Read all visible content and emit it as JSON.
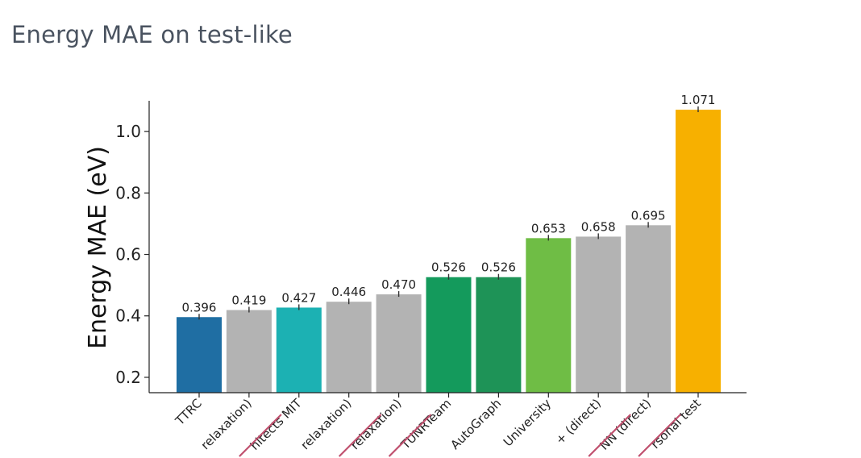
{
  "slide": {
    "title": "Energy MAE on test-like"
  },
  "chart_data": {
    "type": "bar",
    "title": "",
    "xlabel": "",
    "ylabel": "Energy MAE (eV)",
    "ylim": [
      0.15,
      1.1
    ],
    "yticks": [
      0.2,
      0.4,
      0.6,
      0.8,
      1.0
    ],
    "ytick_labels": [
      "0.2",
      "0.4",
      "0.6",
      "0.8",
      "1.0"
    ],
    "grid": false,
    "categories": [
      "TTRC",
      "relaxation)",
      "hitects MIT",
      "relaxation)",
      "relaxation)",
      "TUNRTeam",
      "AutoGraph",
      "University",
      "+ (direct)",
      "NN (direct)",
      "rsonal test"
    ],
    "values": [
      0.396,
      0.419,
      0.427,
      0.446,
      0.47,
      0.526,
      0.526,
      0.653,
      0.658,
      0.695,
      1.071
    ],
    "value_labels": [
      "0.396",
      "0.419",
      "0.427",
      "0.446",
      "0.470",
      "0.526",
      "0.526",
      "0.653",
      "0.658",
      "0.695",
      "1.071"
    ],
    "colors": [
      "#1f6ea3",
      "#b3b3b3",
      "#1cb1b3",
      "#b3b3b3",
      "#b3b3b3",
      "#149a5c",
      "#1e9357",
      "#6fbd45",
      "#b3b3b3",
      "#b3b3b3",
      "#f7b000"
    ],
    "strike_marks": [
      false,
      true,
      false,
      true,
      true,
      false,
      false,
      false,
      true,
      true,
      false
    ],
    "strike_color": "#c0506e"
  }
}
